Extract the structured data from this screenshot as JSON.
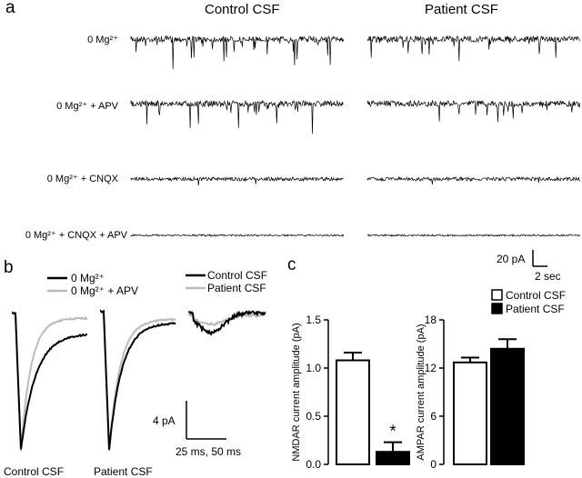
{
  "panel_a": {
    "letter": "a",
    "col_titles": [
      "Control CSF",
      "Patient CSF"
    ],
    "conditions": [
      "0 Mg²⁺",
      "0 Mg²⁺ + APV",
      "0 Mg²⁺ + CNQX",
      "0 Mg²⁺ + CNQX + APV"
    ],
    "scale": {
      "y_label": "20 pA",
      "x_label": "2 sec"
    }
  },
  "panel_b": {
    "letter": "b",
    "legend1": [
      "0 Mg²⁺",
      "0 Mg²⁺ + APV"
    ],
    "legend2": [
      "Control CSF",
      "Patient CSF"
    ],
    "colors": {
      "black": "#000000",
      "gray": "#bbbbbb"
    },
    "x_labels": [
      "Control CSF",
      "Patient CSF"
    ],
    "scale": {
      "y_label": "4 pA",
      "x_label": "25 ms, 50 ms"
    }
  },
  "panel_c": {
    "letter": "c",
    "legend": [
      "Control CSF",
      "Patient CSF"
    ]
  },
  "chart_data": [
    {
      "type": "bar",
      "ylabel": "NMDAR current amplitude (pA)",
      "ylim": [
        0,
        1.5
      ],
      "yticks": [
        "0.0",
        "0.5",
        "1.0",
        "1.5"
      ],
      "series": [
        {
          "name": "Control CSF",
          "values": [
            1.08
          ],
          "error": [
            0.08
          ],
          "fill": "#ffffff"
        },
        {
          "name": "Patient CSF",
          "values": [
            0.13
          ],
          "error": [
            0.1
          ],
          "fill": "#000000"
        }
      ],
      "annotation": "*"
    },
    {
      "type": "bar",
      "ylabel": "AMPAR current amplitude (pA)",
      "ylim": [
        0,
        18
      ],
      "yticks": [
        "0",
        "6",
        "12",
        "18"
      ],
      "series": [
        {
          "name": "Control CSF",
          "values": [
            12.7
          ],
          "error": [
            0.6
          ],
          "fill": "#ffffff"
        },
        {
          "name": "Patient CSF",
          "values": [
            14.4
          ],
          "error": [
            1.2
          ],
          "fill": "#000000"
        }
      ]
    }
  ]
}
